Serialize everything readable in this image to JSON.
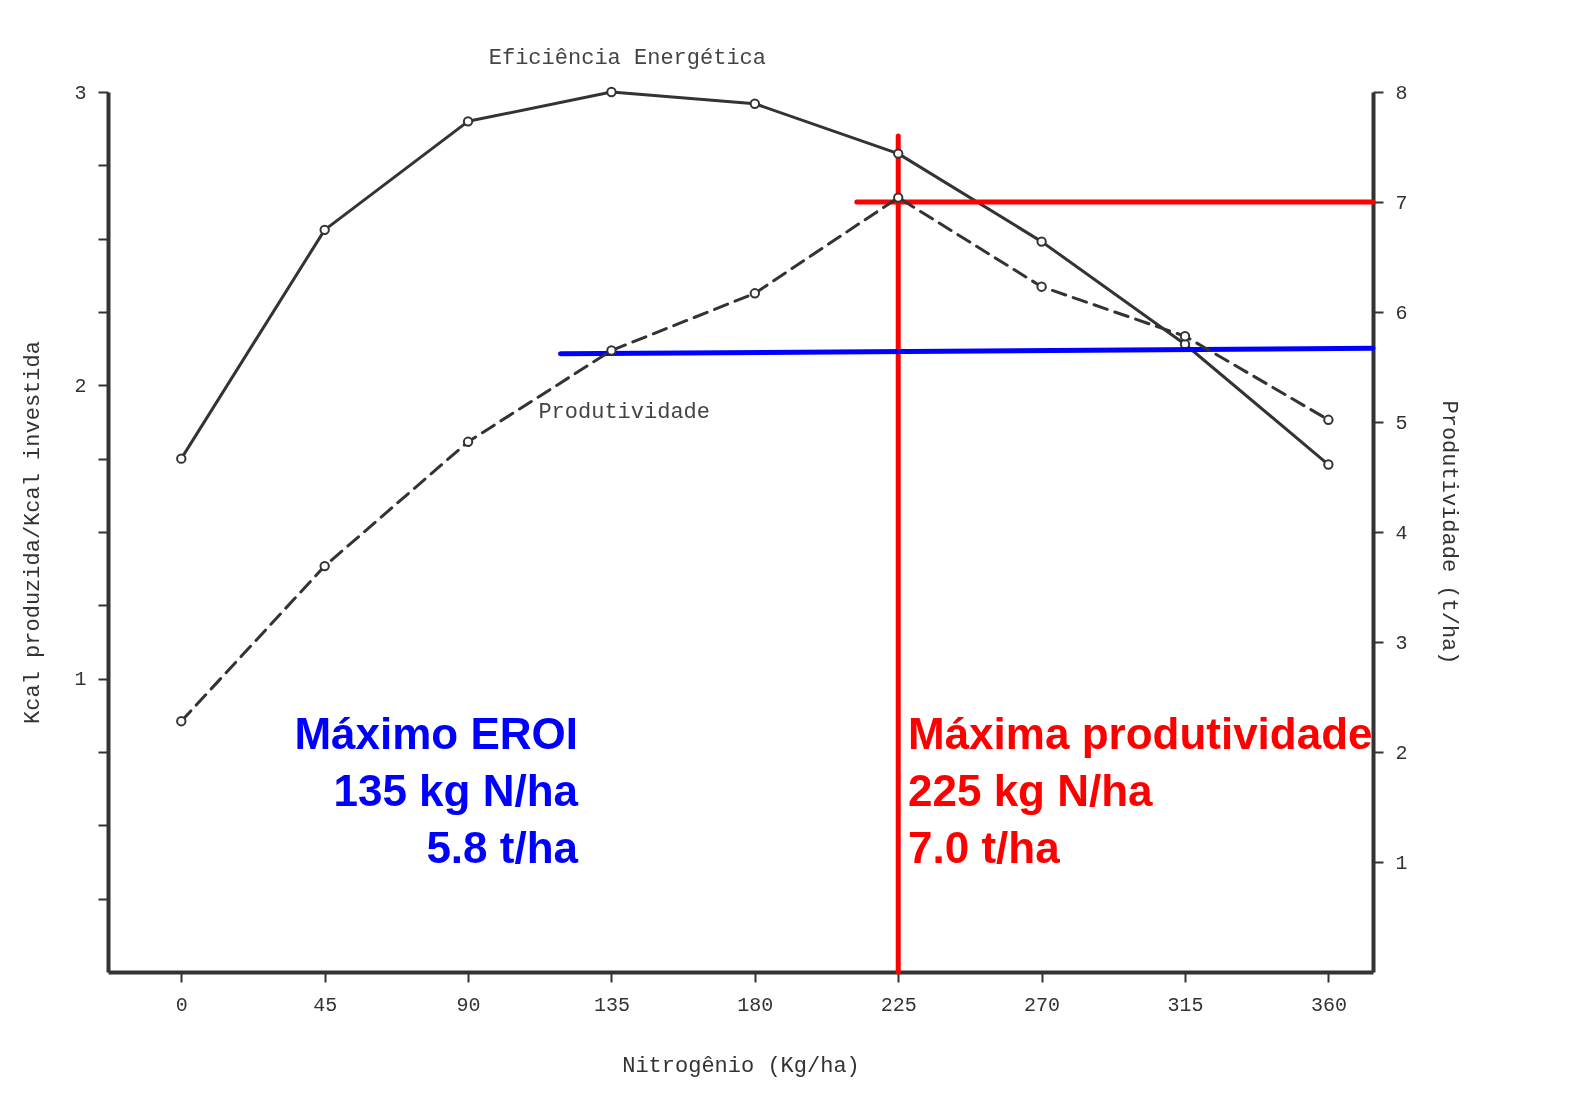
{
  "chart_data": {
    "type": "line",
    "xlabel": "Nitrogênio  (Kg/ha)",
    "ylabel": "Kcal produzida/Kcal investida",
    "y2label": "Produtividade   (t/ha)",
    "xlim": [
      -23,
      374
    ],
    "xticks": [
      0,
      45,
      90,
      135,
      180,
      225,
      270,
      315,
      360
    ],
    "ylim": [
      0,
      3
    ],
    "yticks": [
      {
        "value": 0.25,
        "label": null
      },
      {
        "value": 0.5,
        "label": null
      },
      {
        "value": 0.75,
        "label": null
      },
      1,
      {
        "value": 1.25,
        "label": null
      },
      {
        "value": 1.5,
        "label": null
      },
      {
        "value": 1.75,
        "label": null
      },
      2,
      {
        "value": 2.25,
        "label": null
      },
      {
        "value": 2.5,
        "label": null
      },
      {
        "value": 2.75,
        "label": null
      },
      3
    ],
    "y2lim": [
      0,
      8
    ],
    "y2ticks": [
      1,
      2,
      3,
      4,
      5,
      6,
      7,
      8
    ],
    "grid": false,
    "series": [
      {
        "name": "Eficiência Energética",
        "color": "#333333",
        "marker": "circle",
        "line_style": "solid",
        "x": [
          0,
          45,
          90,
          135,
          180,
          225,
          270,
          315,
          360
        ],
        "values": [
          1.75,
          2.53,
          2.9,
          3.0,
          2.96,
          2.79,
          2.49,
          2.14,
          1.73
        ]
      },
      {
        "name": "Produtividade",
        "color": "#333333",
        "marker": "circle",
        "line_style": "dashed",
        "axis": "y2",
        "x": [
          0,
          45,
          90,
          135,
          180,
          225,
          270,
          315,
          360
        ],
        "values": [
          2.28,
          3.69,
          4.82,
          5.65,
          6.17,
          7.04,
          6.23,
          5.78,
          5.02
        ]
      },
      {
        "color": "#ff0000",
        "marker": "none",
        "line_style": "solid",
        "x": [
          225,
          225
        ],
        "values": [
          0,
          2.85
        ]
      },
      {
        "color": "#ff0000",
        "marker": "none",
        "line_style": "solid",
        "axis": "y2",
        "x": [
          212,
          374
        ],
        "values": [
          7.0,
          7.0
        ]
      },
      {
        "color": "#0000ff",
        "marker": "none",
        "line_style": "solid",
        "axis": "y2",
        "x": [
          119,
          374
        ],
        "values": [
          5.62,
          5.67
        ]
      }
    ],
    "annotations": [
      "Máximo   EROI\n135 kg N/ha\n5.8 t/ha",
      "Máxima produtividade\n225 kg N/ha\n7.0 t/ha"
    ]
  }
}
